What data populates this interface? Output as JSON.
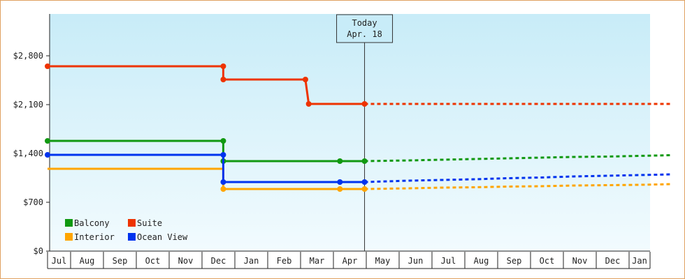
{
  "chart_data": {
    "type": "line",
    "step": true,
    "ylim": [
      0,
      3400
    ],
    "yticks": [
      0,
      700,
      1400,
      2100,
      2800
    ],
    "ytick_labels": [
      "$0",
      "$700",
      "$1,400",
      "$2,100",
      "$2,800"
    ],
    "months": [
      "Jul",
      "Aug",
      "Sep",
      "Oct",
      "Nov",
      "Dec",
      "Jan",
      "Feb",
      "Mar",
      "Apr",
      "May",
      "Jun",
      "Jul",
      "Aug",
      "Sep",
      "Oct",
      "Nov",
      "Dec",
      "Jan"
    ],
    "today_label": "Today",
    "today_date": "Apr. 18",
    "today_x": 9.65,
    "grid": false,
    "legend": "bottom-left",
    "series": [
      {
        "name": "Balcony",
        "color": "#119911",
        "actual": [
          [
            0,
            1580
          ],
          [
            5.35,
            1580
          ],
          [
            5.35,
            1290
          ],
          [
            8.9,
            1290
          ],
          [
            9.65,
            1290
          ]
        ],
        "markers": [
          [
            0,
            1580
          ],
          [
            5.35,
            1580
          ],
          [
            5.35,
            1290
          ],
          [
            8.9,
            1290
          ],
          [
            9.65,
            1290
          ]
        ],
        "projected": [
          [
            9.65,
            1290
          ],
          [
            11,
            1300
          ],
          [
            12,
            1310
          ],
          [
            13,
            1320
          ],
          [
            14,
            1330
          ],
          [
            15,
            1340
          ],
          [
            16,
            1350
          ],
          [
            17,
            1355
          ],
          [
            18,
            1365
          ],
          [
            19,
            1375
          ]
        ]
      },
      {
        "name": "Suite",
        "color": "#ee3300",
        "actual": [
          [
            0,
            2650
          ],
          [
            5.35,
            2650
          ],
          [
            5.35,
            2460
          ],
          [
            7.85,
            2460
          ],
          [
            7.95,
            2110
          ],
          [
            9.65,
            2110
          ]
        ],
        "markers": [
          [
            0,
            2650
          ],
          [
            5.35,
            2650
          ],
          [
            5.35,
            2460
          ],
          [
            7.85,
            2460
          ],
          [
            7.95,
            2110
          ],
          [
            9.65,
            2110
          ]
        ],
        "projected": [
          [
            9.65,
            2110
          ],
          [
            19,
            2110
          ]
        ]
      },
      {
        "name": "Interior",
        "color": "#ffa500",
        "actual": [
          [
            0,
            1180
          ],
          [
            5.35,
            1180
          ],
          [
            5.35,
            890
          ],
          [
            8.9,
            890
          ],
          [
            9.65,
            890
          ]
        ],
        "markers": [
          [
            5.35,
            890
          ],
          [
            8.9,
            890
          ],
          [
            9.65,
            890
          ]
        ],
        "projected": [
          [
            9.65,
            890
          ],
          [
            11,
            900
          ],
          [
            12,
            910
          ],
          [
            13,
            915
          ],
          [
            14,
            925
          ],
          [
            15,
            930
          ],
          [
            16,
            940
          ],
          [
            17,
            945
          ],
          [
            18,
            950
          ],
          [
            19,
            960
          ]
        ]
      },
      {
        "name": "Ocean View",
        "color": "#0033ee",
        "actual": [
          [
            0,
            1380
          ],
          [
            5.35,
            1380
          ],
          [
            5.35,
            990
          ],
          [
            8.9,
            990
          ],
          [
            9.65,
            990
          ]
        ],
        "markers": [
          [
            0,
            1380
          ],
          [
            5.35,
            1380
          ],
          [
            5.35,
            990
          ],
          [
            8.9,
            990
          ],
          [
            9.65,
            990
          ]
        ],
        "projected": [
          [
            9.65,
            990
          ],
          [
            11,
            1010
          ],
          [
            12,
            1020
          ],
          [
            13,
            1030
          ],
          [
            14,
            1045
          ],
          [
            15,
            1055
          ],
          [
            16,
            1070
          ],
          [
            17,
            1080
          ],
          [
            18,
            1090
          ],
          [
            19,
            1100
          ]
        ]
      }
    ]
  }
}
